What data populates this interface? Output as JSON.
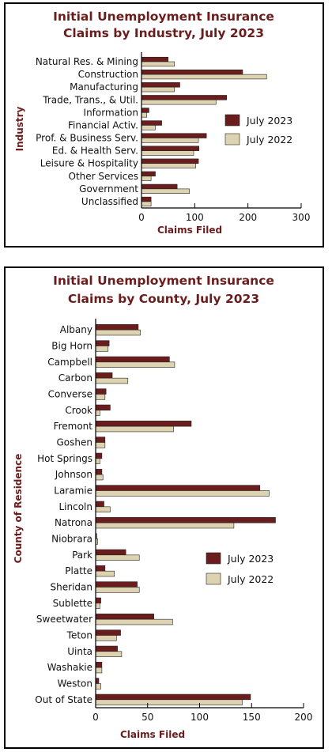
{
  "colors": {
    "july2023": "#6b1d1d",
    "july2022": "#ddd3b0",
    "title": "#6b1d1d"
  },
  "chart_data": [
    {
      "type": "bar",
      "orientation": "horizontal",
      "title_line1": "Initial Unemployment Insurance",
      "title_line2": "Claims by Industry, July 2023",
      "xlabel": "Claims Filed",
      "ylabel": "Industry",
      "xlim": [
        0,
        300
      ],
      "xticks": [
        0,
        100,
        200,
        300
      ],
      "legend_position": "right",
      "grid": false,
      "categories": [
        "Natural Res. & Mining",
        "Construction",
        "Manufacturing",
        "Trade, Trans., & Util.",
        "Information",
        "Financial Activ.",
        "Prof. & Business Serv.",
        "Ed. & Health Serv.",
        "Leisure & Hospitality",
        "Other Services",
        "Government",
        "Unclassified"
      ],
      "series": [
        {
          "name": "July 2023",
          "values": [
            50,
            190,
            72,
            160,
            14,
            38,
            122,
            108,
            107,
            26,
            67,
            18
          ]
        },
        {
          "name": "July 2022",
          "values": [
            62,
            235,
            62,
            140,
            10,
            26,
            107,
            98,
            102,
            18,
            90,
            18
          ]
        }
      ]
    },
    {
      "type": "bar",
      "orientation": "horizontal",
      "title_line1": "Initial Unemployment Insurance",
      "title_line2": "Claims by County, July 2023",
      "xlabel": "Claims Filed",
      "ylabel": "County of Residence",
      "xlim": [
        0,
        200
      ],
      "xticks": [
        0,
        50,
        100,
        150,
        200
      ],
      "legend_position": "right",
      "grid": false,
      "categories": [
        "Albany",
        "Big Horn",
        "Campbell",
        "Carbon",
        "Converse",
        "Crook",
        "Fremont",
        "Goshen",
        "Hot Springs",
        "Johnson",
        "Laramie",
        "Lincoln",
        "Natrona",
        "Niobrara",
        "Park",
        "Platte",
        "Sheridan",
        "Sublette",
        "Sweetwater",
        "Teton",
        "Uinta",
        "Washakie",
        "Weston",
        "Out of State"
      ],
      "series": [
        {
          "name": "July 2023",
          "values": [
            41,
            13,
            71,
            16,
            10,
            14,
            92,
            9,
            6,
            6,
            158,
            8,
            173,
            1,
            29,
            9,
            40,
            5,
            56,
            24,
            21,
            6,
            3,
            149
          ]
        },
        {
          "name": "July 2022",
          "values": [
            43,
            12,
            76,
            31,
            9,
            4,
            75,
            9,
            4,
            7,
            167,
            14,
            133,
            2,
            42,
            18,
            42,
            4,
            74,
            20,
            25,
            6,
            5,
            141
          ]
        }
      ]
    }
  ]
}
